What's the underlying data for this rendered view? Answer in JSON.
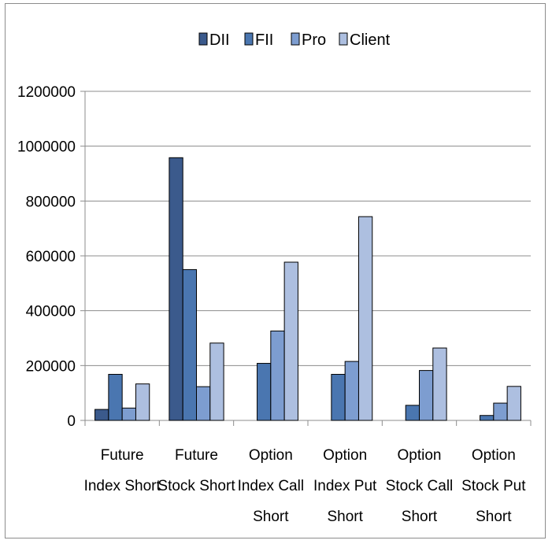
{
  "chart_data": {
    "type": "bar",
    "title": "",
    "xlabel": "",
    "ylabel": "",
    "ylim": [
      0,
      1200000
    ],
    "yticks": [
      "0",
      "200000",
      "400000",
      "600000",
      "800000",
      "1000000",
      "1200000"
    ],
    "ytick_values": [
      0,
      200000,
      400000,
      600000,
      800000,
      1000000,
      1200000
    ],
    "grid": true,
    "legend_position": "top",
    "categories": [
      [
        "Future",
        "Index Short"
      ],
      [
        "Future",
        "Stock Short"
      ],
      [
        "Option",
        "Index Call",
        "Short"
      ],
      [
        "Option",
        "Index Put",
        "Short"
      ],
      [
        "Option",
        "Stock Call",
        "Short"
      ],
      [
        "Option",
        "Stock Put",
        "Short"
      ]
    ],
    "series": [
      {
        "name": "DII",
        "color": "#3b5a8c",
        "values": [
          40000,
          958000,
          0,
          0,
          0,
          0
        ]
      },
      {
        "name": "FII",
        "color": "#4a76b0",
        "values": [
          168000,
          550000,
          208000,
          168000,
          55000,
          18000
        ]
      },
      {
        "name": "Pro",
        "color": "#7d9dd0",
        "values": [
          45000,
          123000,
          326000,
          215000,
          182000,
          63000
        ]
      },
      {
        "name": "Client",
        "color": "#adbfe0",
        "values": [
          133000,
          282000,
          577000,
          743000,
          264000,
          124000
        ]
      }
    ]
  }
}
